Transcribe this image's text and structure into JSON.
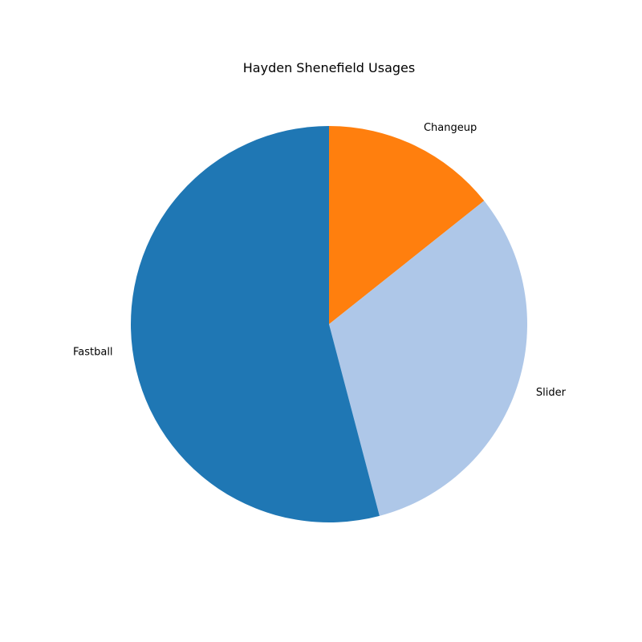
{
  "chart_data": {
    "type": "pie",
    "title": "Hayden Shenefield Usages",
    "slices": [
      {
        "label": "Changeup",
        "value": 14.3,
        "color": "#ff7f0e"
      },
      {
        "label": "Slider",
        "value": 31.6,
        "color": "#aec7e8"
      },
      {
        "label": "Fastball",
        "value": 54.1,
        "color": "#1f77b4"
      }
    ],
    "start": "top",
    "direction": "clockwise",
    "legend": "none"
  }
}
